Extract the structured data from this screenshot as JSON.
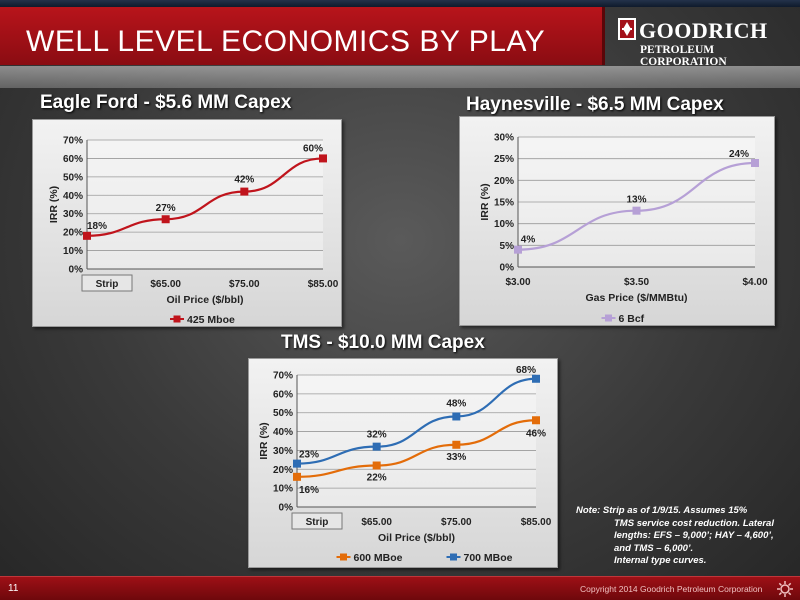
{
  "slide": {
    "title": "WELL LEVEL ECONOMICS BY PLAY",
    "page_number": "11",
    "copyright": "Copyright 2014 Goodrich Petroleum Corporation"
  },
  "logo": {
    "line1": "GOODRICH",
    "line2": "PETROLEUM CORPORATION"
  },
  "headings": {
    "eagle_ford": "Eagle Ford - $5.6 MM Capex",
    "haynesville": "Haynesville - $6.5 MM Capex",
    "tms": "TMS - $10.0 MM Capex"
  },
  "note": {
    "line1": "Note: Strip as of 1/9/15. Assumes 15%",
    "rest": [
      "TMS service cost reduction. Lateral",
      "lengths: EFS – 9,000’; HAY – 4,600’,",
      "and TMS – 6,000’.",
      "Internal type curves."
    ]
  },
  "colors": {
    "brand_red": "#a3111a",
    "eagle_ford_series": "#c0141c",
    "haynesville_series": "#b6a0d6",
    "tms_600": "#e36c09",
    "tms_700": "#2e6db4"
  },
  "chart_data": [
    {
      "type": "line",
      "title": "Eagle Ford - $5.6 MM Capex",
      "categories": [
        "Strip",
        "$65.00",
        "$75.00",
        "$85.00"
      ],
      "series": [
        {
          "name": "425 Mboe",
          "values": [
            18,
            27,
            42,
            60
          ],
          "labels": [
            "18%",
            "27%",
            "42%",
            "60%"
          ]
        }
      ],
      "xlabel": "Oil Price ($/bbl)",
      "ylabel": "IRR (%)",
      "ylim": [
        0,
        70
      ],
      "yticks": [
        "0%",
        "10%",
        "20%",
        "30%",
        "40%",
        "50%",
        "60%",
        "70%"
      ],
      "grid": true,
      "legend": "bottom"
    },
    {
      "type": "line",
      "title": "Haynesville - $6.5 MM Capex",
      "categories": [
        "$3.00",
        "$3.50",
        "$4.00"
      ],
      "series": [
        {
          "name": "6 Bcf",
          "values": [
            4,
            13,
            24
          ],
          "labels": [
            "4%",
            "13%",
            "24%"
          ]
        }
      ],
      "xlabel": "Gas Price ($/MMBtu)",
      "ylabel": "IRR (%)",
      "ylim": [
        0,
        30
      ],
      "yticks": [
        "0%",
        "5%",
        "10%",
        "15%",
        "20%",
        "25%",
        "30%"
      ],
      "grid": true,
      "legend": "bottom"
    },
    {
      "type": "line",
      "title": "TMS - $10.0 MM Capex",
      "categories": [
        "Strip",
        "$65.00",
        "$75.00",
        "$85.00"
      ],
      "series": [
        {
          "name": "600 MBoe",
          "values": [
            16,
            22,
            33,
            46
          ],
          "labels": [
            "16%",
            "22%",
            "33%",
            "46%"
          ]
        },
        {
          "name": "700 MBoe",
          "values": [
            23,
            32,
            48,
            68
          ],
          "labels": [
            "23%",
            "32%",
            "48%",
            "68%"
          ]
        }
      ],
      "xlabel": "Oil Price ($/bbl)",
      "ylabel": "IRR (%)",
      "ylim": [
        0,
        70
      ],
      "yticks": [
        "0%",
        "10%",
        "20%",
        "30%",
        "40%",
        "50%",
        "60%",
        "70%"
      ],
      "grid": true,
      "legend": "bottom"
    }
  ]
}
